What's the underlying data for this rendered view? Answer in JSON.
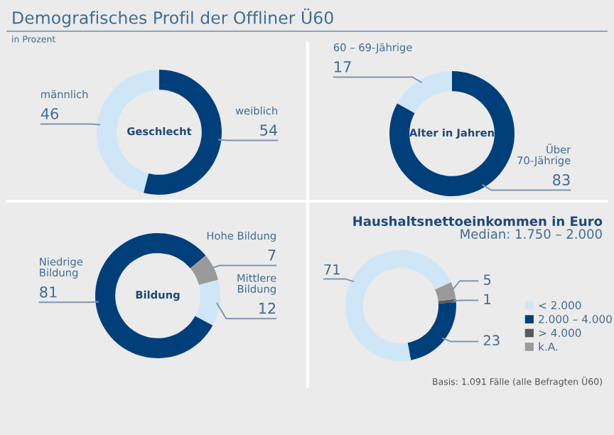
{
  "chart_data": [
    {
      "type": "donut",
      "title": "Geschlecht",
      "annotations": [
        "Demografisches Profil der Offliner Ü60",
        "in Prozent"
      ],
      "categories": [
        "männlich",
        "weiblich"
      ],
      "values": [
        46,
        54
      ],
      "colors": [
        "#cfe6f7",
        "#003f7a"
      ],
      "data_labels": true
    },
    {
      "type": "donut",
      "title": "Alter in Jahren",
      "categories": [
        "60 – 69-Jährige",
        "Über 70-Jährige"
      ],
      "values": [
        17,
        83
      ],
      "colors": [
        "#cfe6f7",
        "#003f7a"
      ],
      "data_labels": true
    },
    {
      "type": "donut",
      "title": "Bildung",
      "categories": [
        "Niedrige Bildung",
        "Mittlere Bildung",
        "Hohe Bildung"
      ],
      "values": [
        81,
        12,
        7
      ],
      "colors": [
        "#003f7a",
        "#cfe6f7",
        "#9a9a9a"
      ],
      "data_labels": true
    },
    {
      "type": "donut",
      "title": "Haushaltsnettoeinkommen in Euro",
      "subtitle": "Median: 1.750 – 2.000",
      "annotations": [
        "Basis: 1.091 Fälle (alle Befragten Ü60)"
      ],
      "categories": [
        "< 2.000",
        "2.000 – 4.000",
        "> 4.000",
        "k.A."
      ],
      "values": [
        71,
        23,
        1,
        5
      ],
      "colors": [
        "#cfe6f7",
        "#003f7a",
        "#5a5a5a",
        "#9a9a9a"
      ],
      "data_labels": true,
      "legend": "right"
    }
  ]
}
